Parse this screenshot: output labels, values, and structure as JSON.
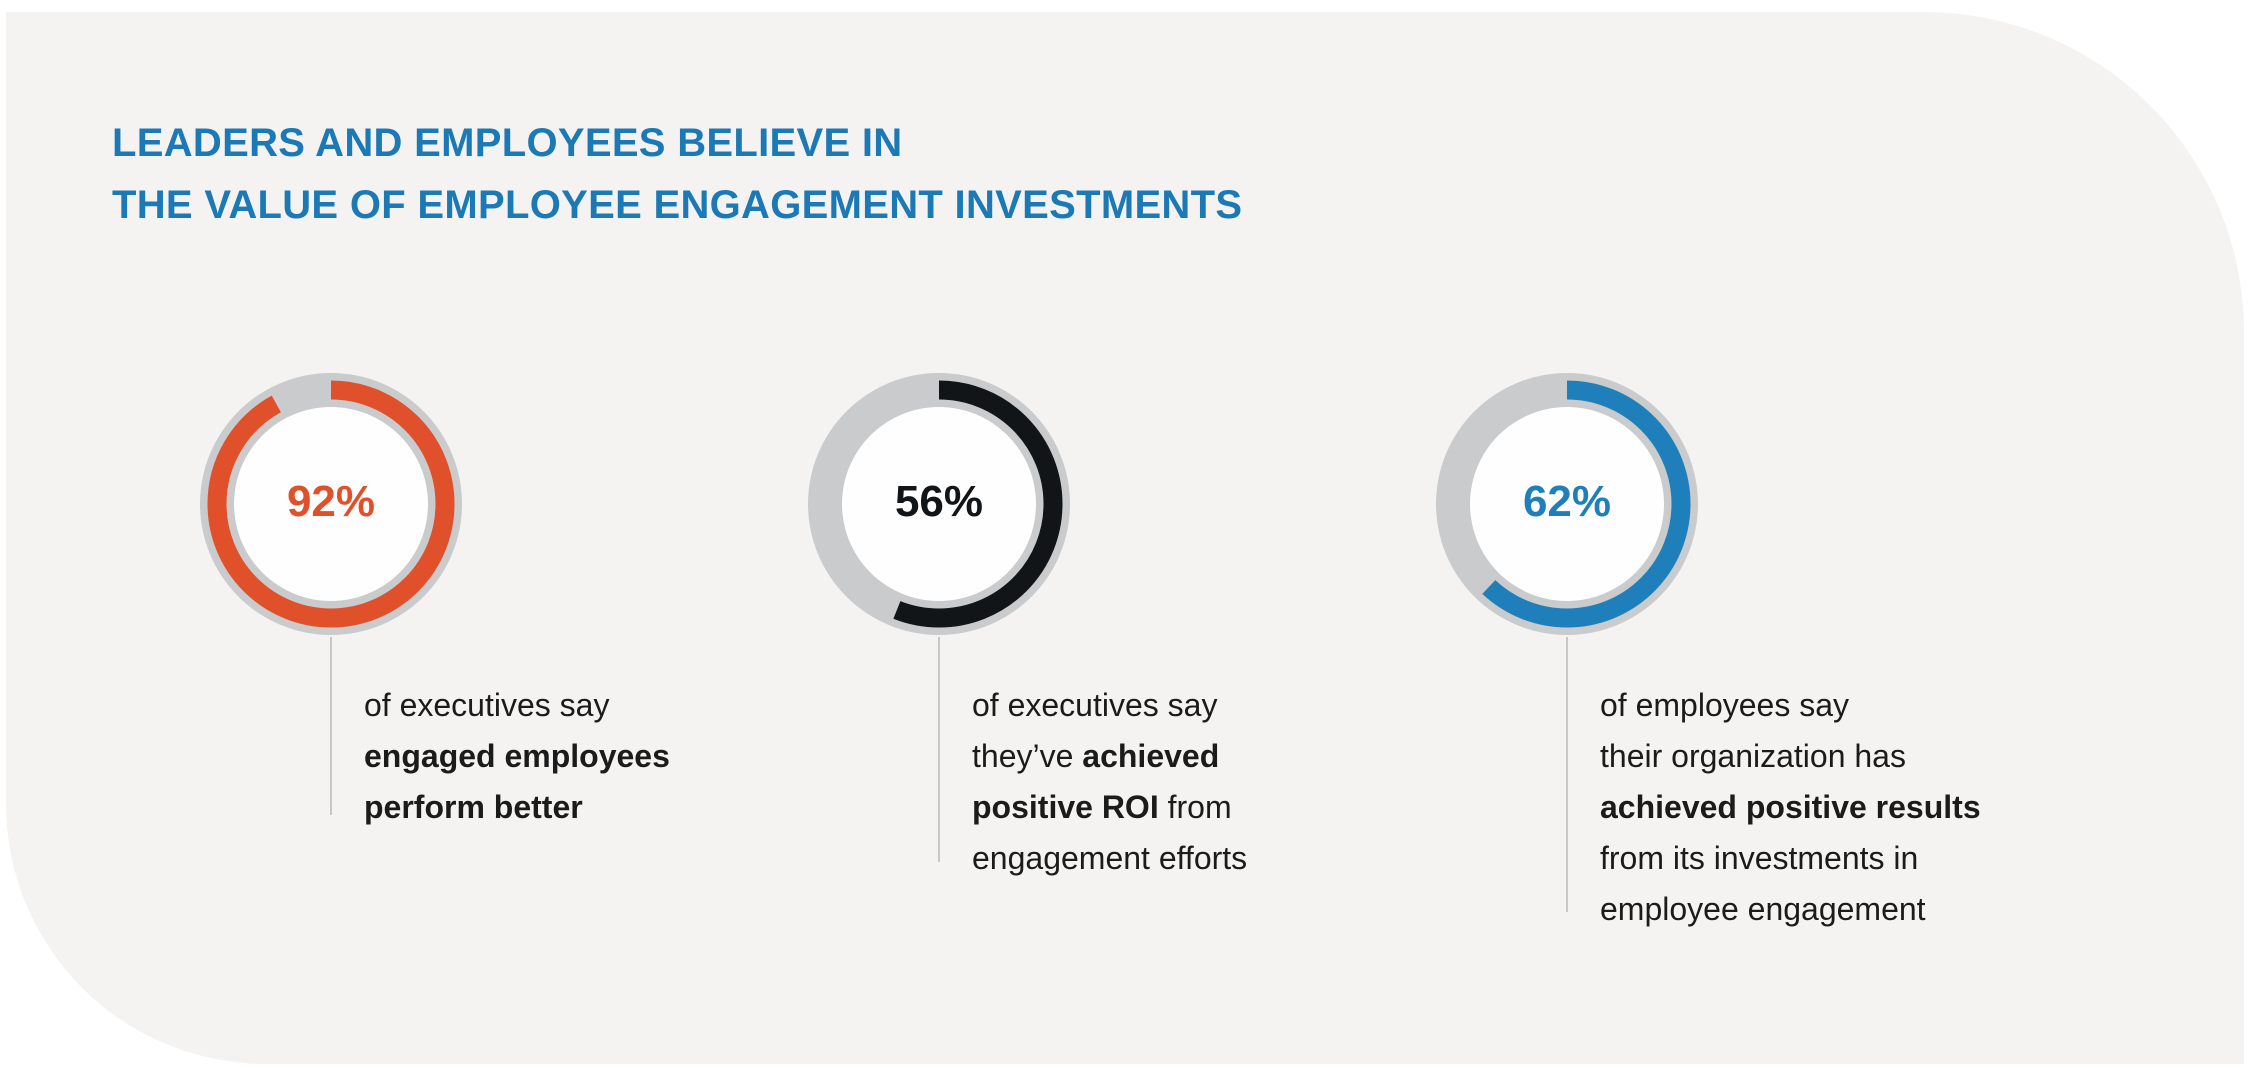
{
  "title": {
    "line1": "LEADERS AND EMPLOYEES BELIEVE IN",
    "line2": "THE VALUE OF EMPLOYEE ENGAGEMENT INVESTMENTS"
  },
  "chart_data": {
    "type": "donut-gauges",
    "title": "LEADERS AND EMPLOYEES BELIEVE IN THE VALUE OF EMPLOYEE ENGAGEMENT INVESTMENTS",
    "items": [
      {
        "value": 92,
        "label": "92%",
        "color": "#e0502a",
        "lines": [
          [
            {
              "t": "of executives say",
              "b": false
            }
          ],
          [
            {
              "t": "engaged employees",
              "b": true
            }
          ],
          [
            {
              "t": "perform better",
              "b": true
            }
          ]
        ]
      },
      {
        "value": 56,
        "label": "56%",
        "color": "#121518",
        "lines": [
          [
            {
              "t": "of executives say",
              "b": false
            }
          ],
          [
            {
              "t": "they’ve ",
              "b": false
            },
            {
              "t": "achieved",
              "b": true
            }
          ],
          [
            {
              "t": "positive ROI",
              "b": true
            },
            {
              "t": " from",
              "b": false
            }
          ],
          [
            {
              "t": "engagement efforts",
              "b": false
            }
          ]
        ]
      },
      {
        "value": 62,
        "label": "62%",
        "color": "#1f7fba",
        "lines": [
          [
            {
              "t": "of employees say",
              "b": false
            }
          ],
          [
            {
              "t": "their organization has",
              "b": false
            }
          ],
          [
            {
              "t": "achieved positive results",
              "b": true
            }
          ],
          [
            {
              "t": "from its investments in",
              "b": false
            }
          ],
          [
            {
              "t": "employee engagement",
              "b": false
            }
          ]
        ]
      }
    ],
    "track_color": "#c9cbcc"
  }
}
